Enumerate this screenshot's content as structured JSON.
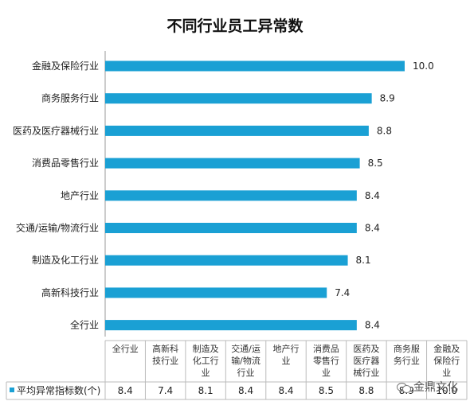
{
  "chart_data": {
    "type": "bar",
    "orientation": "horizontal",
    "title": "不同行业员工异常数",
    "categories": [
      "金融及保险行业",
      "商务服务行业",
      "医药及医疗器械行业",
      "消费品零售行业",
      "地产行业",
      "交通/运输/物流行业",
      "制造及化工行业",
      "高新科技行业",
      "全行业"
    ],
    "values": [
      10.0,
      8.9,
      8.8,
      8.5,
      8.4,
      8.4,
      8.1,
      7.4,
      8.4
    ],
    "value_labels": [
      "10.0",
      "8.9",
      "8.8",
      "8.5",
      "8.4",
      "8.4",
      "8.1",
      "7.4",
      "8.4"
    ],
    "series": [
      {
        "name": "平均异常指标数(个)",
        "values": [
          10.0,
          8.9,
          8.8,
          8.5,
          8.4,
          8.4,
          8.1,
          7.4,
          8.4
        ]
      }
    ],
    "xlim": [
      0,
      10.0
    ],
    "bar_color": "#1aa0d4",
    "grid": false,
    "data_table": {
      "legend_label": "平均异常指标数(个)",
      "columns": [
        {
          "lines": [
            "全行业"
          ],
          "value": "8.4"
        },
        {
          "lines": [
            "高新科",
            "技行业"
          ],
          "value": "7.4"
        },
        {
          "lines": [
            "制造及",
            "化工行",
            "业"
          ],
          "value": "8.1"
        },
        {
          "lines": [
            "交通/运",
            "输/物流",
            "行业"
          ],
          "value": "8.4"
        },
        {
          "lines": [
            "地产行",
            "业"
          ],
          "value": "8.4"
        },
        {
          "lines": [
            "消费品",
            "零售行",
            "业"
          ],
          "value": "8.5"
        },
        {
          "lines": [
            "医药及",
            "医疗器",
            "械行业"
          ],
          "value": "8.8"
        },
        {
          "lines": [
            "商务服",
            "务行业"
          ],
          "value": "8.9"
        },
        {
          "lines": [
            "金融及",
            "保险行",
            "业"
          ],
          "value": "10.0"
        }
      ]
    }
  },
  "watermark": {
    "text": "金鼎文化",
    "icon": "wechat-icon"
  }
}
